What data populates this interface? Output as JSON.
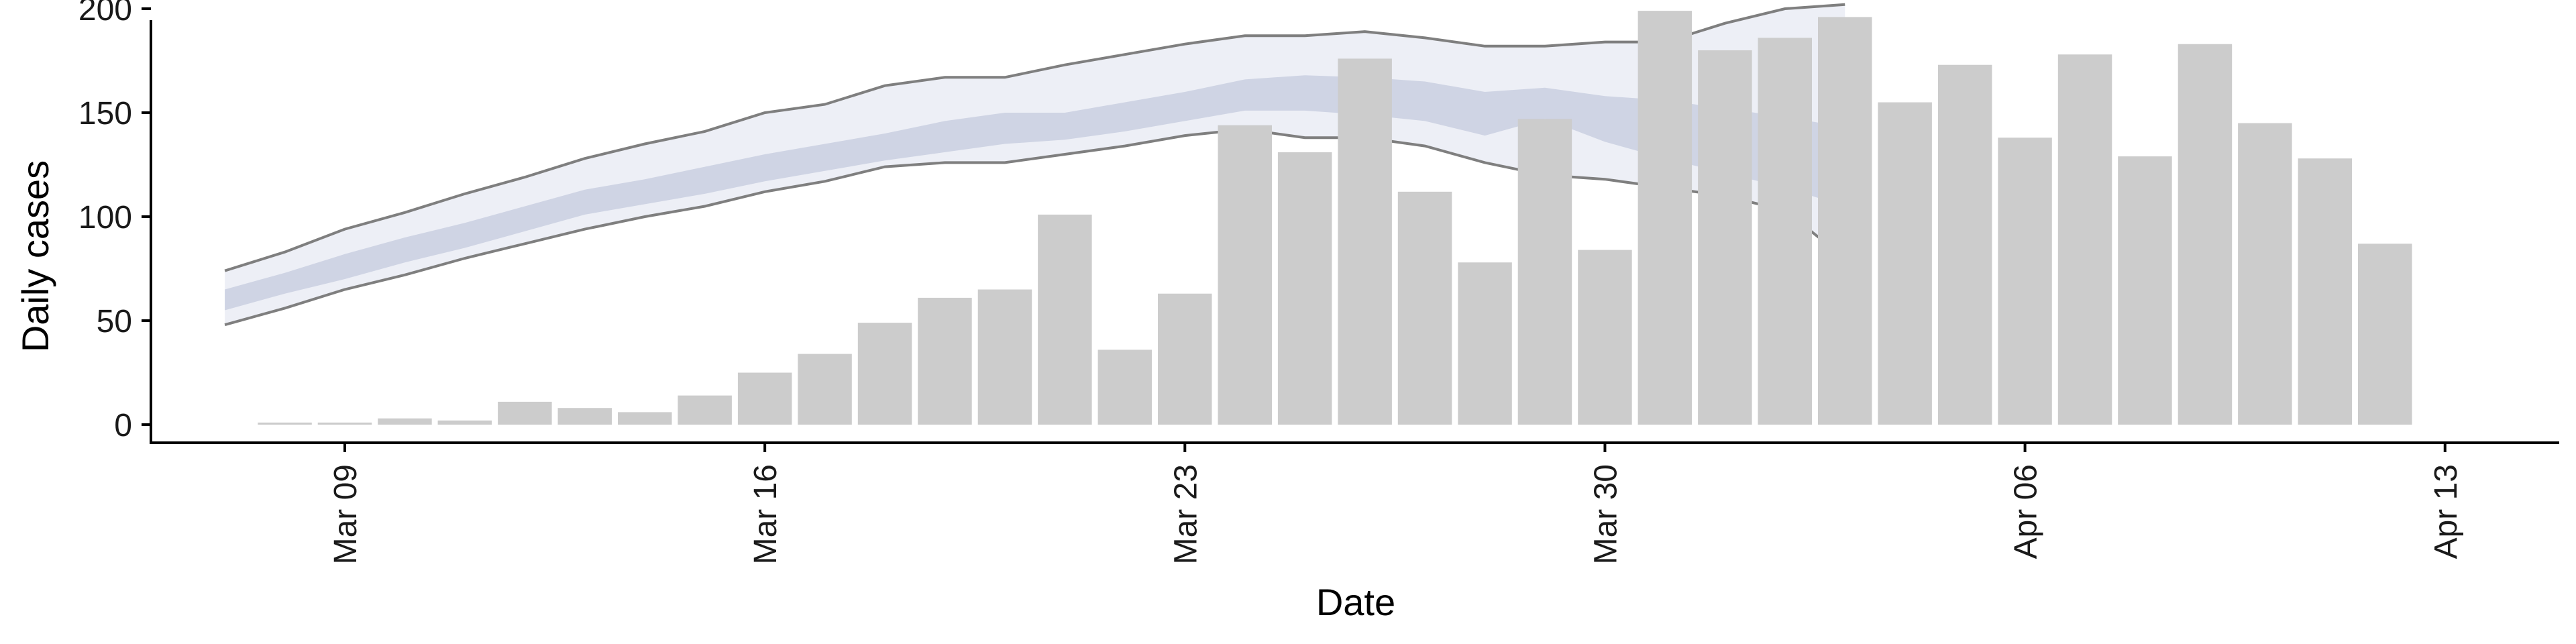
{
  "chart_data": {
    "type": "bar",
    "xlabel": "Date",
    "ylabel": "Daily cases",
    "ylim": [
      -8,
      215
    ],
    "xlim": [
      "2020-03-06",
      "2020-04-14"
    ],
    "y_ticks": [
      0,
      50,
      100,
      150,
      200
    ],
    "x_ticks": [
      {
        "date": "2020-03-09",
        "label": "Mar 09"
      },
      {
        "date": "2020-03-16",
        "label": "Mar 16"
      },
      {
        "date": "2020-03-23",
        "label": "Mar 23"
      },
      {
        "date": "2020-03-30",
        "label": "Mar 30"
      },
      {
        "date": "2020-04-06",
        "label": "Apr 06"
      },
      {
        "date": "2020-04-13",
        "label": "Apr 13"
      }
    ],
    "grid": false,
    "colors": {
      "bars": "#cccccc",
      "outer_band": "#eceef5",
      "inner_band": "#c9cfe0",
      "bound_lines": "#7f7f7f",
      "axis": "#000000"
    },
    "series": [
      {
        "type": "bar",
        "start_date": "2020-03-08",
        "values": [
          1,
          1,
          3,
          2,
          11,
          8,
          6,
          14,
          25,
          34,
          49,
          61,
          65,
          101,
          36,
          63,
          144,
          131,
          176,
          112,
          78,
          147,
          84,
          199,
          180,
          186,
          196,
          155,
          173,
          138,
          178,
          129,
          183,
          145,
          128,
          87
        ]
      },
      {
        "type": "band",
        "start_date": "2020-03-07",
        "outer_upper": [
          74,
          83,
          94,
          102,
          111,
          119,
          128,
          135,
          141,
          150,
          154,
          163,
          167,
          167,
          173,
          178,
          183,
          187,
          187,
          189,
          186,
          182,
          182,
          184,
          184,
          193,
          200,
          202
        ],
        "inner_upper": [
          65,
          73,
          82,
          90,
          97,
          105,
          113,
          118,
          124,
          130,
          135,
          140,
          146,
          150,
          150,
          155,
          160,
          166,
          168,
          167,
          165,
          160,
          162,
          158,
          156,
          152,
          148,
          143
        ],
        "inner_lower": [
          55,
          63,
          70,
          78,
          85,
          93,
          101,
          106,
          111,
          117,
          122,
          127,
          131,
          135,
          137,
          141,
          146,
          151,
          151,
          149,
          146,
          139,
          147,
          136,
          128,
          121,
          114,
          105
        ],
        "outer_lower": [
          48,
          56,
          65,
          72,
          80,
          87,
          94,
          100,
          105,
          112,
          117,
          124,
          126,
          126,
          130,
          134,
          139,
          142,
          138,
          138,
          134,
          126,
          120,
          118,
          114,
          110,
          103,
          80
        ]
      }
    ]
  }
}
